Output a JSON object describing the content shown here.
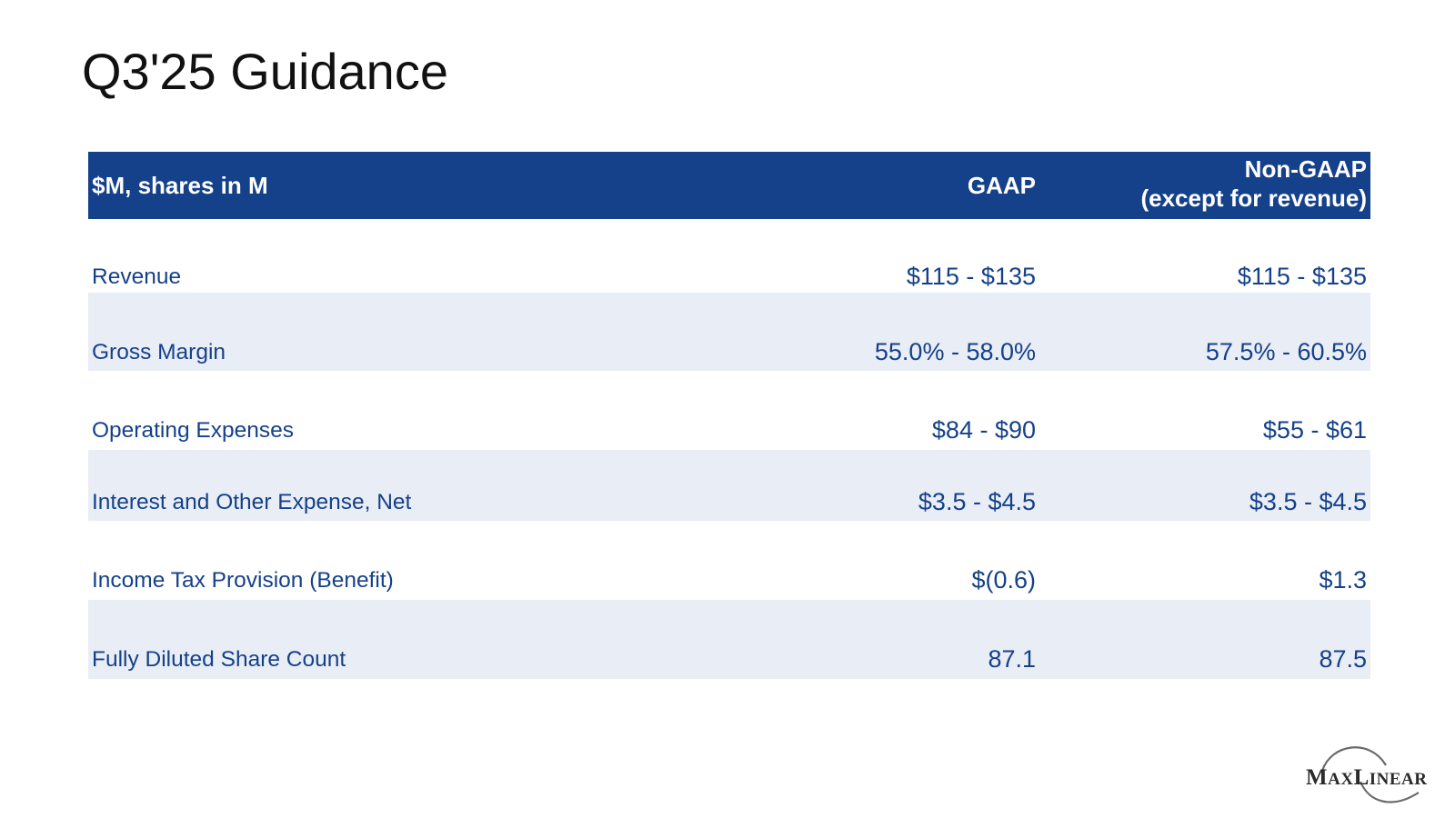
{
  "title": "Q3'25 Guidance",
  "table": {
    "header": {
      "label": "$M, shares in M",
      "gaap": "GAAP",
      "nongaap_line1": "Non-GAAP",
      "nongaap_line2": "(except for revenue)"
    },
    "rows": [
      {
        "label": "Revenue",
        "gaap": "$115 - $135",
        "nongaap": "$115 - $135"
      },
      {
        "label": "Gross Margin",
        "gaap": "55.0% - 58.0%",
        "nongaap": "57.5% - 60.5%"
      },
      {
        "label": "Operating Expenses",
        "gaap": "$84 - $90",
        "nongaap": "$55 - $61"
      },
      {
        "label": "Interest and Other Expense, Net",
        "gaap": "$3.5 - $4.5",
        "nongaap": "$3.5 - $4.5"
      },
      {
        "label": "Income Tax Provision (Benefit)",
        "gaap": "$(0.6)",
        "nongaap": "$1.3"
      },
      {
        "label": "Fully Diluted Share Count",
        "gaap": "87.1",
        "nongaap": "87.5"
      }
    ]
  },
  "logo": {
    "text_m": "M",
    "text_ax": "AX",
    "text_l": "L",
    "text_inear": "INEAR"
  },
  "colors": {
    "header_bg": "#15418a",
    "row_text": "#15418a",
    "row_shade": "#e9edf5"
  }
}
